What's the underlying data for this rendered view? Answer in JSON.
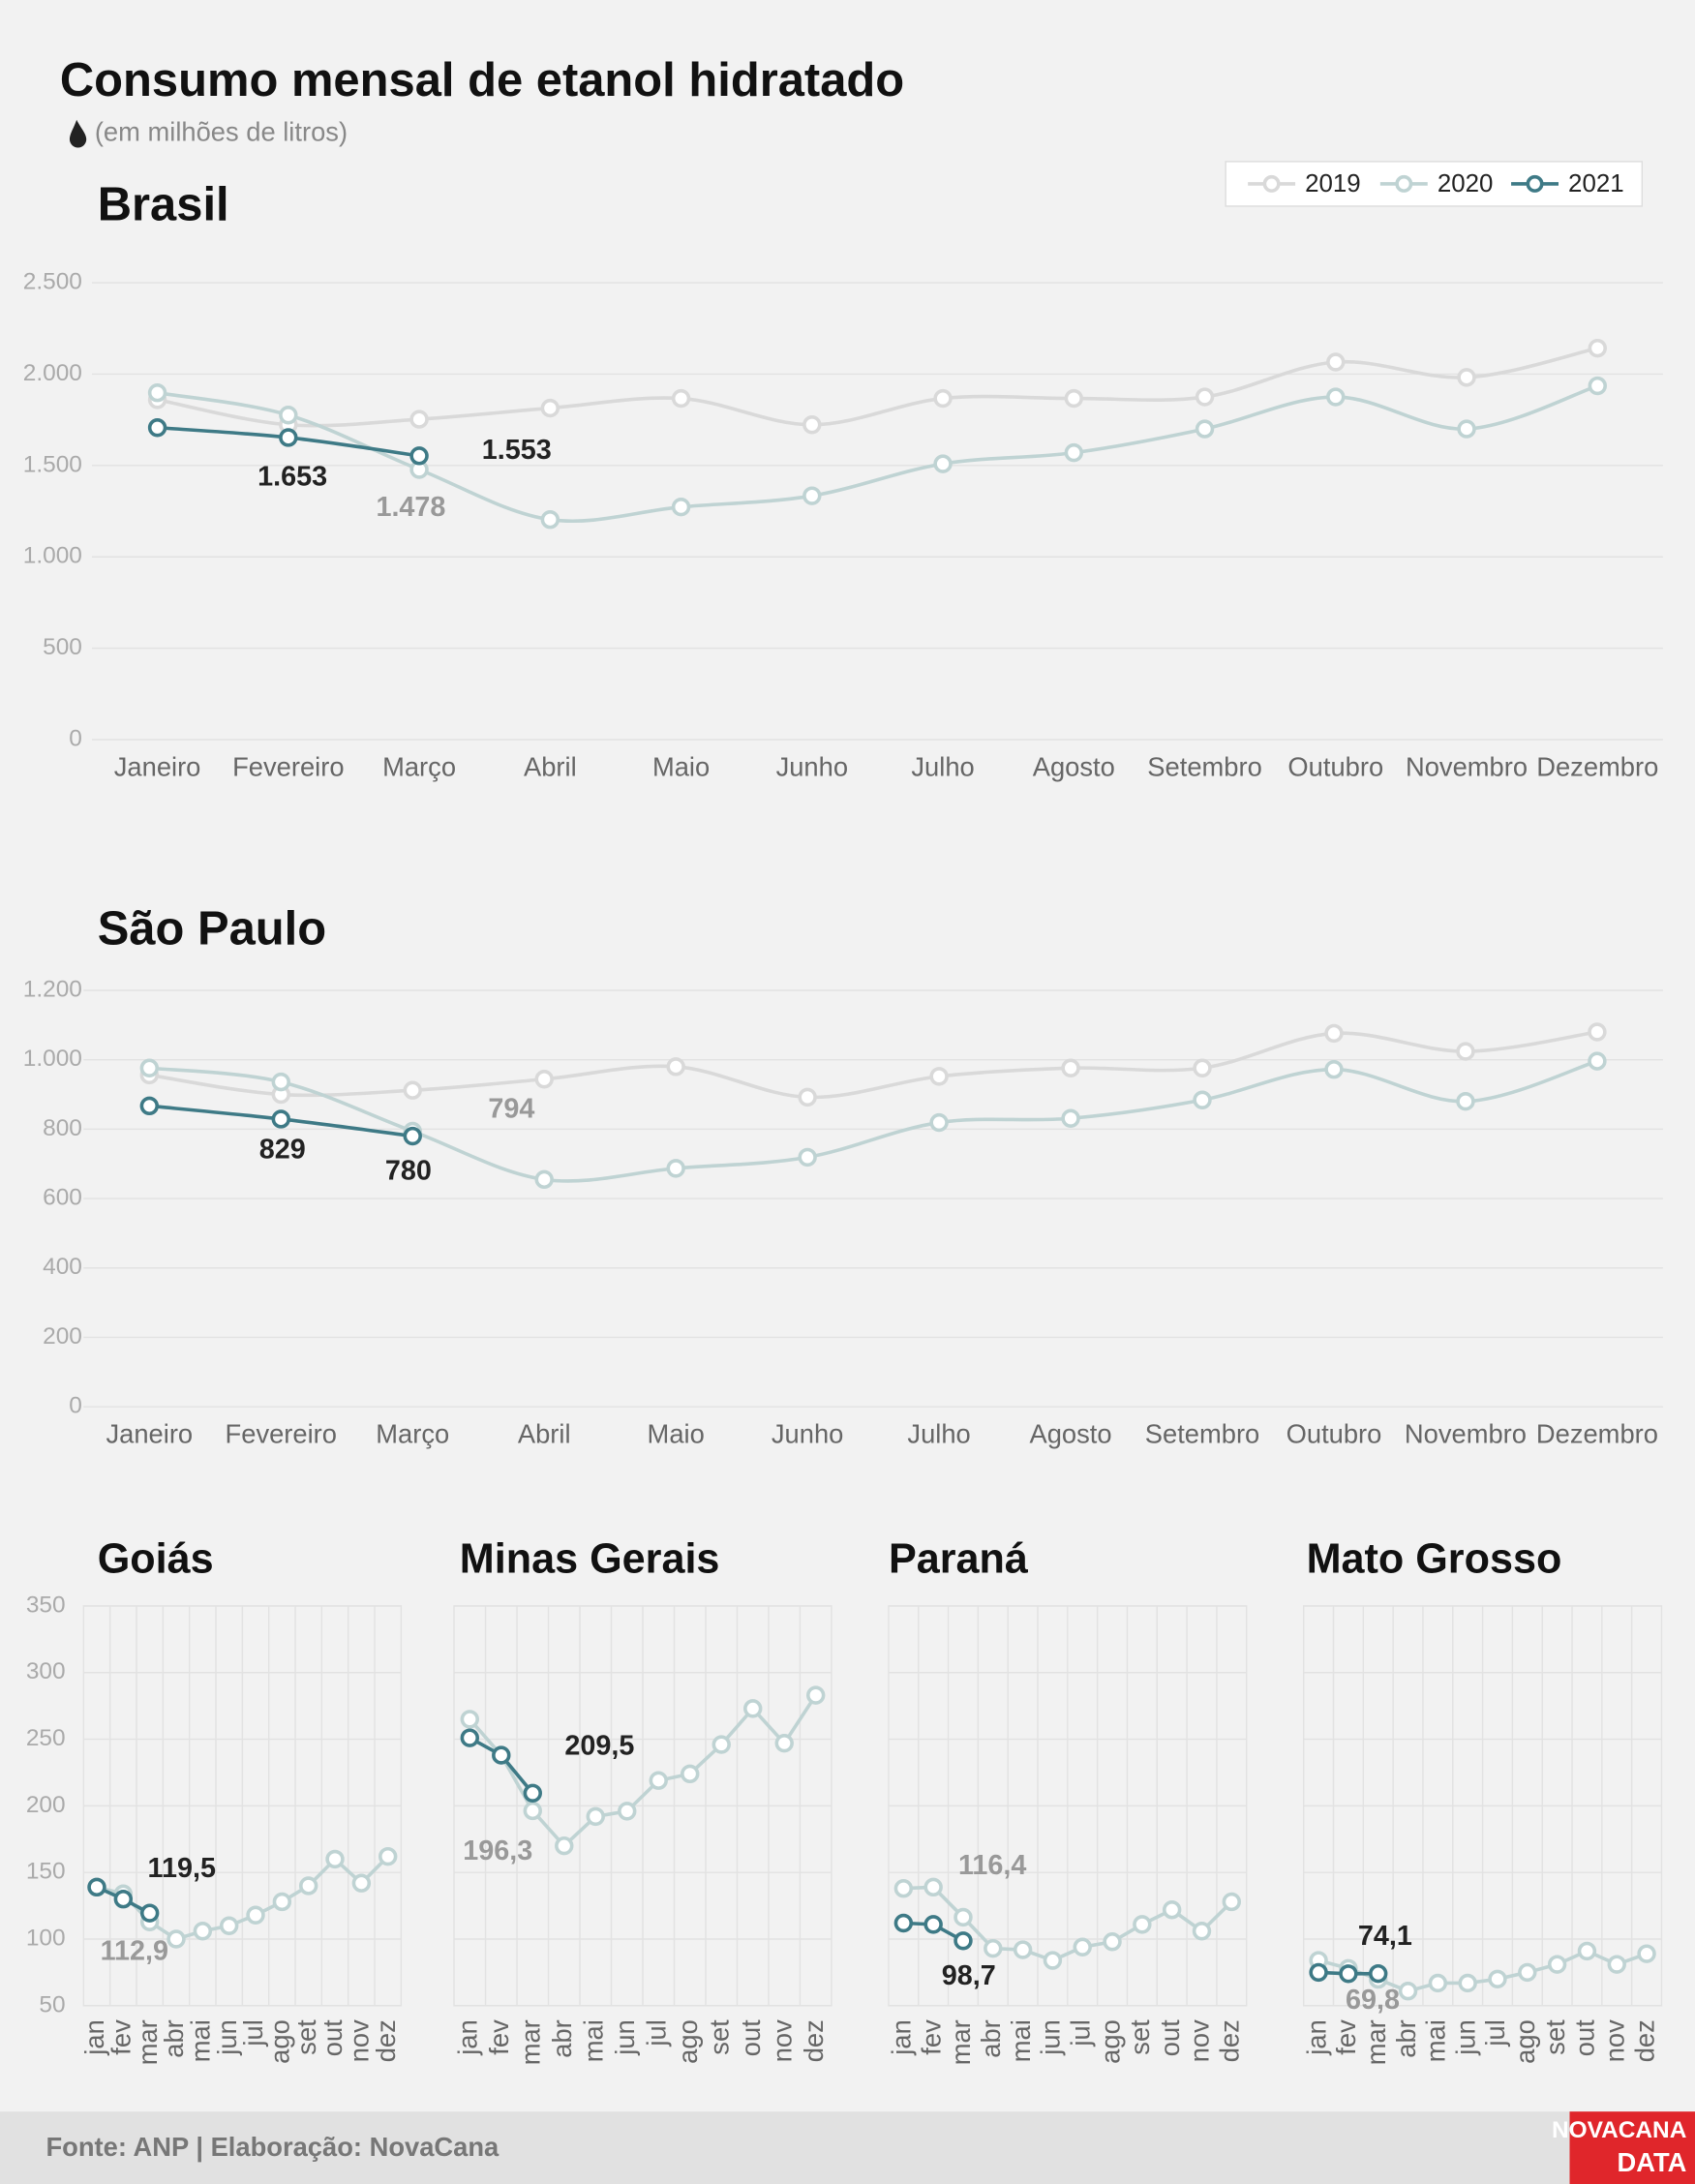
{
  "title": "Consumo mensal de etanol hidratado",
  "subtitle": "(em milhões de litros)",
  "source": "Fonte: ANP | Elaboração: NovaCana",
  "logo": [
    "NOVACANA",
    "DATA"
  ],
  "legend": "top-right",
  "chart_data": [
    {
      "type": "line",
      "title": "Brasil",
      "smooth": true,
      "grid": true,
      "categories": [
        "Janeiro",
        "Fevereiro",
        "Março",
        "Abril",
        "Maio",
        "Junho",
        "Julho",
        "Agosto",
        "Setembro",
        "Outubro",
        "Novembro",
        "Dezembro"
      ],
      "ylim": [
        0,
        2500
      ],
      "yticks": [
        0,
        500,
        {
          "value": 1000,
          "label": "1.000"
        },
        {
          "value": 1500,
          "label": "1.500"
        },
        {
          "value": 2000,
          "label": "2.000"
        },
        {
          "value": 2500,
          "label": "2.500"
        }
      ],
      "series": [
        {
          "name": "2019",
          "color": "#d9d9d9",
          "values": [
            1860,
            1723,
            1753,
            1814,
            1867,
            1723,
            1867,
            1867,
            1875,
            2066,
            1982,
            2142
          ]
        },
        {
          "name": "2020",
          "color": "#bfd3d3",
          "values": [
            1898,
            1776,
            1478,
            1204,
            1273,
            1334,
            1509,
            1570,
            1700,
            1875,
            1700,
            1936
          ],
          "value_labels": [
            null,
            null,
            "1.478",
            null,
            null,
            null,
            null,
            null,
            null,
            null,
            null,
            null
          ]
        },
        {
          "name": "2021",
          "color": "#3e7a86",
          "values": [
            1707,
            1653,
            1553,
            null,
            null,
            null,
            null,
            null,
            null,
            null,
            null,
            null
          ],
          "value_labels": [
            null,
            "1.653",
            "1.553",
            null,
            null,
            null,
            null,
            null,
            null,
            null,
            null,
            null
          ]
        }
      ]
    },
    {
      "type": "line",
      "title": "São Paulo",
      "smooth": true,
      "grid": true,
      "categories": [
        "Janeiro",
        "Fevereiro",
        "Março",
        "Abril",
        "Maio",
        "Junho",
        "Julho",
        "Agosto",
        "Setembro",
        "Outubro",
        "Novembro",
        "Dezembro"
      ],
      "ylim": [
        0,
        1200
      ],
      "yticks": [
        0,
        200,
        400,
        600,
        800,
        {
          "value": 1000,
          "label": "1.000"
        },
        {
          "value": 1200,
          "label": "1.200"
        }
      ],
      "series": [
        {
          "name": "2019",
          "color": "#d9d9d9",
          "values": [
            956,
            900,
            912,
            944,
            980,
            892,
            952,
            976,
            976,
            1076,
            1024,
            1080
          ]
        },
        {
          "name": "2020",
          "color": "#bfd3d3",
          "values": [
            976,
            936,
            794,
            655,
            687,
            719,
            819,
            831,
            884,
            972,
            880,
            996
          ],
          "value_labels": [
            null,
            null,
            "794",
            null,
            null,
            null,
            null,
            null,
            null,
            null,
            null,
            null
          ]
        },
        {
          "name": "2021",
          "color": "#3e7a86",
          "values": [
            867,
            829,
            780,
            null,
            null,
            null,
            null,
            null,
            null,
            null,
            null,
            null
          ],
          "value_labels": [
            null,
            "829",
            "780",
            null,
            null,
            null,
            null,
            null,
            null,
            null,
            null,
            null
          ]
        }
      ]
    },
    {
      "type": "line",
      "title": "Goiás",
      "smooth": false,
      "grid": true,
      "ytick_labels": true,
      "categories": [
        "jan",
        "fev",
        "mar",
        "abr",
        "mai",
        "jun",
        "jul",
        "ago",
        "set",
        "out",
        "nov",
        "dez"
      ],
      "ylim": [
        50,
        350
      ],
      "yticks": [
        50,
        100,
        150,
        200,
        250,
        300,
        350
      ],
      "series": [
        {
          "name": "2020",
          "color": "#bfd3d3",
          "values": [
            139,
            134,
            112.9,
            100,
            106,
            110,
            118,
            128,
            140,
            160,
            142,
            162
          ],
          "value_labels": [
            null,
            null,
            "112,9",
            null,
            null,
            null,
            null,
            null,
            null,
            null,
            null,
            null
          ]
        },
        {
          "name": "2021",
          "color": "#3e7a86",
          "values": [
            139,
            130,
            119.5,
            null,
            null,
            null,
            null,
            null,
            null,
            null,
            null,
            null
          ],
          "value_labels": [
            null,
            null,
            "119,5",
            null,
            null,
            null,
            null,
            null,
            null,
            null,
            null,
            null
          ]
        }
      ]
    },
    {
      "type": "line",
      "title": "Minas Gerais",
      "smooth": false,
      "grid": true,
      "ytick_labels": false,
      "categories": [
        "jan",
        "fev",
        "mar",
        "abr",
        "mai",
        "jun",
        "jul",
        "ago",
        "set",
        "out",
        "nov",
        "dez"
      ],
      "ylim": [
        50,
        350
      ],
      "yticks": [
        50,
        100,
        150,
        200,
        250,
        300,
        350
      ],
      "series": [
        {
          "name": "2020",
          "color": "#bfd3d3",
          "values": [
            265,
            238,
            196.3,
            170,
            192,
            196,
            219,
            224,
            246,
            273,
            247,
            283
          ],
          "value_labels": [
            null,
            null,
            "196,3",
            null,
            null,
            null,
            null,
            null,
            null,
            null,
            null,
            null
          ]
        },
        {
          "name": "2021",
          "color": "#3e7a86",
          "values": [
            251,
            238,
            209.5,
            null,
            null,
            null,
            null,
            null,
            null,
            null,
            null,
            null
          ],
          "value_labels": [
            null,
            null,
            "209,5",
            null,
            null,
            null,
            null,
            null,
            null,
            null,
            null,
            null
          ]
        }
      ]
    },
    {
      "type": "line",
      "title": "Paraná",
      "smooth": false,
      "grid": true,
      "ytick_labels": false,
      "categories": [
        "jan",
        "fev",
        "mar",
        "abr",
        "mai",
        "jun",
        "jul",
        "ago",
        "set",
        "out",
        "nov",
        "dez"
      ],
      "ylim": [
        50,
        350
      ],
      "yticks": [
        50,
        100,
        150,
        200,
        250,
        300,
        350
      ],
      "series": [
        {
          "name": "2020",
          "color": "#bfd3d3",
          "values": [
            138,
            139,
            116.4,
            93,
            92,
            84,
            94,
            98,
            111,
            122,
            106,
            128
          ],
          "value_labels": [
            null,
            null,
            "116,4",
            null,
            null,
            null,
            null,
            null,
            null,
            null,
            null,
            null
          ]
        },
        {
          "name": "2021",
          "color": "#3e7a86",
          "values": [
            112,
            111,
            98.7,
            null,
            null,
            null,
            null,
            null,
            null,
            null,
            null,
            null
          ],
          "value_labels": [
            null,
            null,
            "98,7",
            null,
            null,
            null,
            null,
            null,
            null,
            null,
            null,
            null
          ]
        }
      ]
    },
    {
      "type": "line",
      "title": "Mato Grosso",
      "smooth": false,
      "grid": true,
      "ytick_labels": false,
      "categories": [
        "jan",
        "fev",
        "mar",
        "abr",
        "mai",
        "jun",
        "jul",
        "ago",
        "set",
        "out",
        "nov",
        "dez"
      ],
      "ylim": [
        50,
        350
      ],
      "yticks": [
        50,
        100,
        150,
        200,
        250,
        300,
        350
      ],
      "series": [
        {
          "name": "2020",
          "color": "#bfd3d3",
          "values": [
            84,
            78,
            69.8,
            61,
            67,
            67,
            70,
            75,
            81,
            91,
            81,
            89
          ],
          "value_labels": [
            null,
            null,
            "69,8",
            null,
            null,
            null,
            null,
            null,
            null,
            null,
            null,
            null
          ]
        },
        {
          "name": "2021",
          "color": "#3e7a86",
          "values": [
            75,
            74,
            74.1,
            null,
            null,
            null,
            null,
            null,
            null,
            null,
            null,
            null
          ],
          "value_labels": [
            null,
            null,
            "74,1",
            null,
            null,
            null,
            null,
            null,
            null,
            null,
            null,
            null
          ]
        }
      ]
    }
  ]
}
